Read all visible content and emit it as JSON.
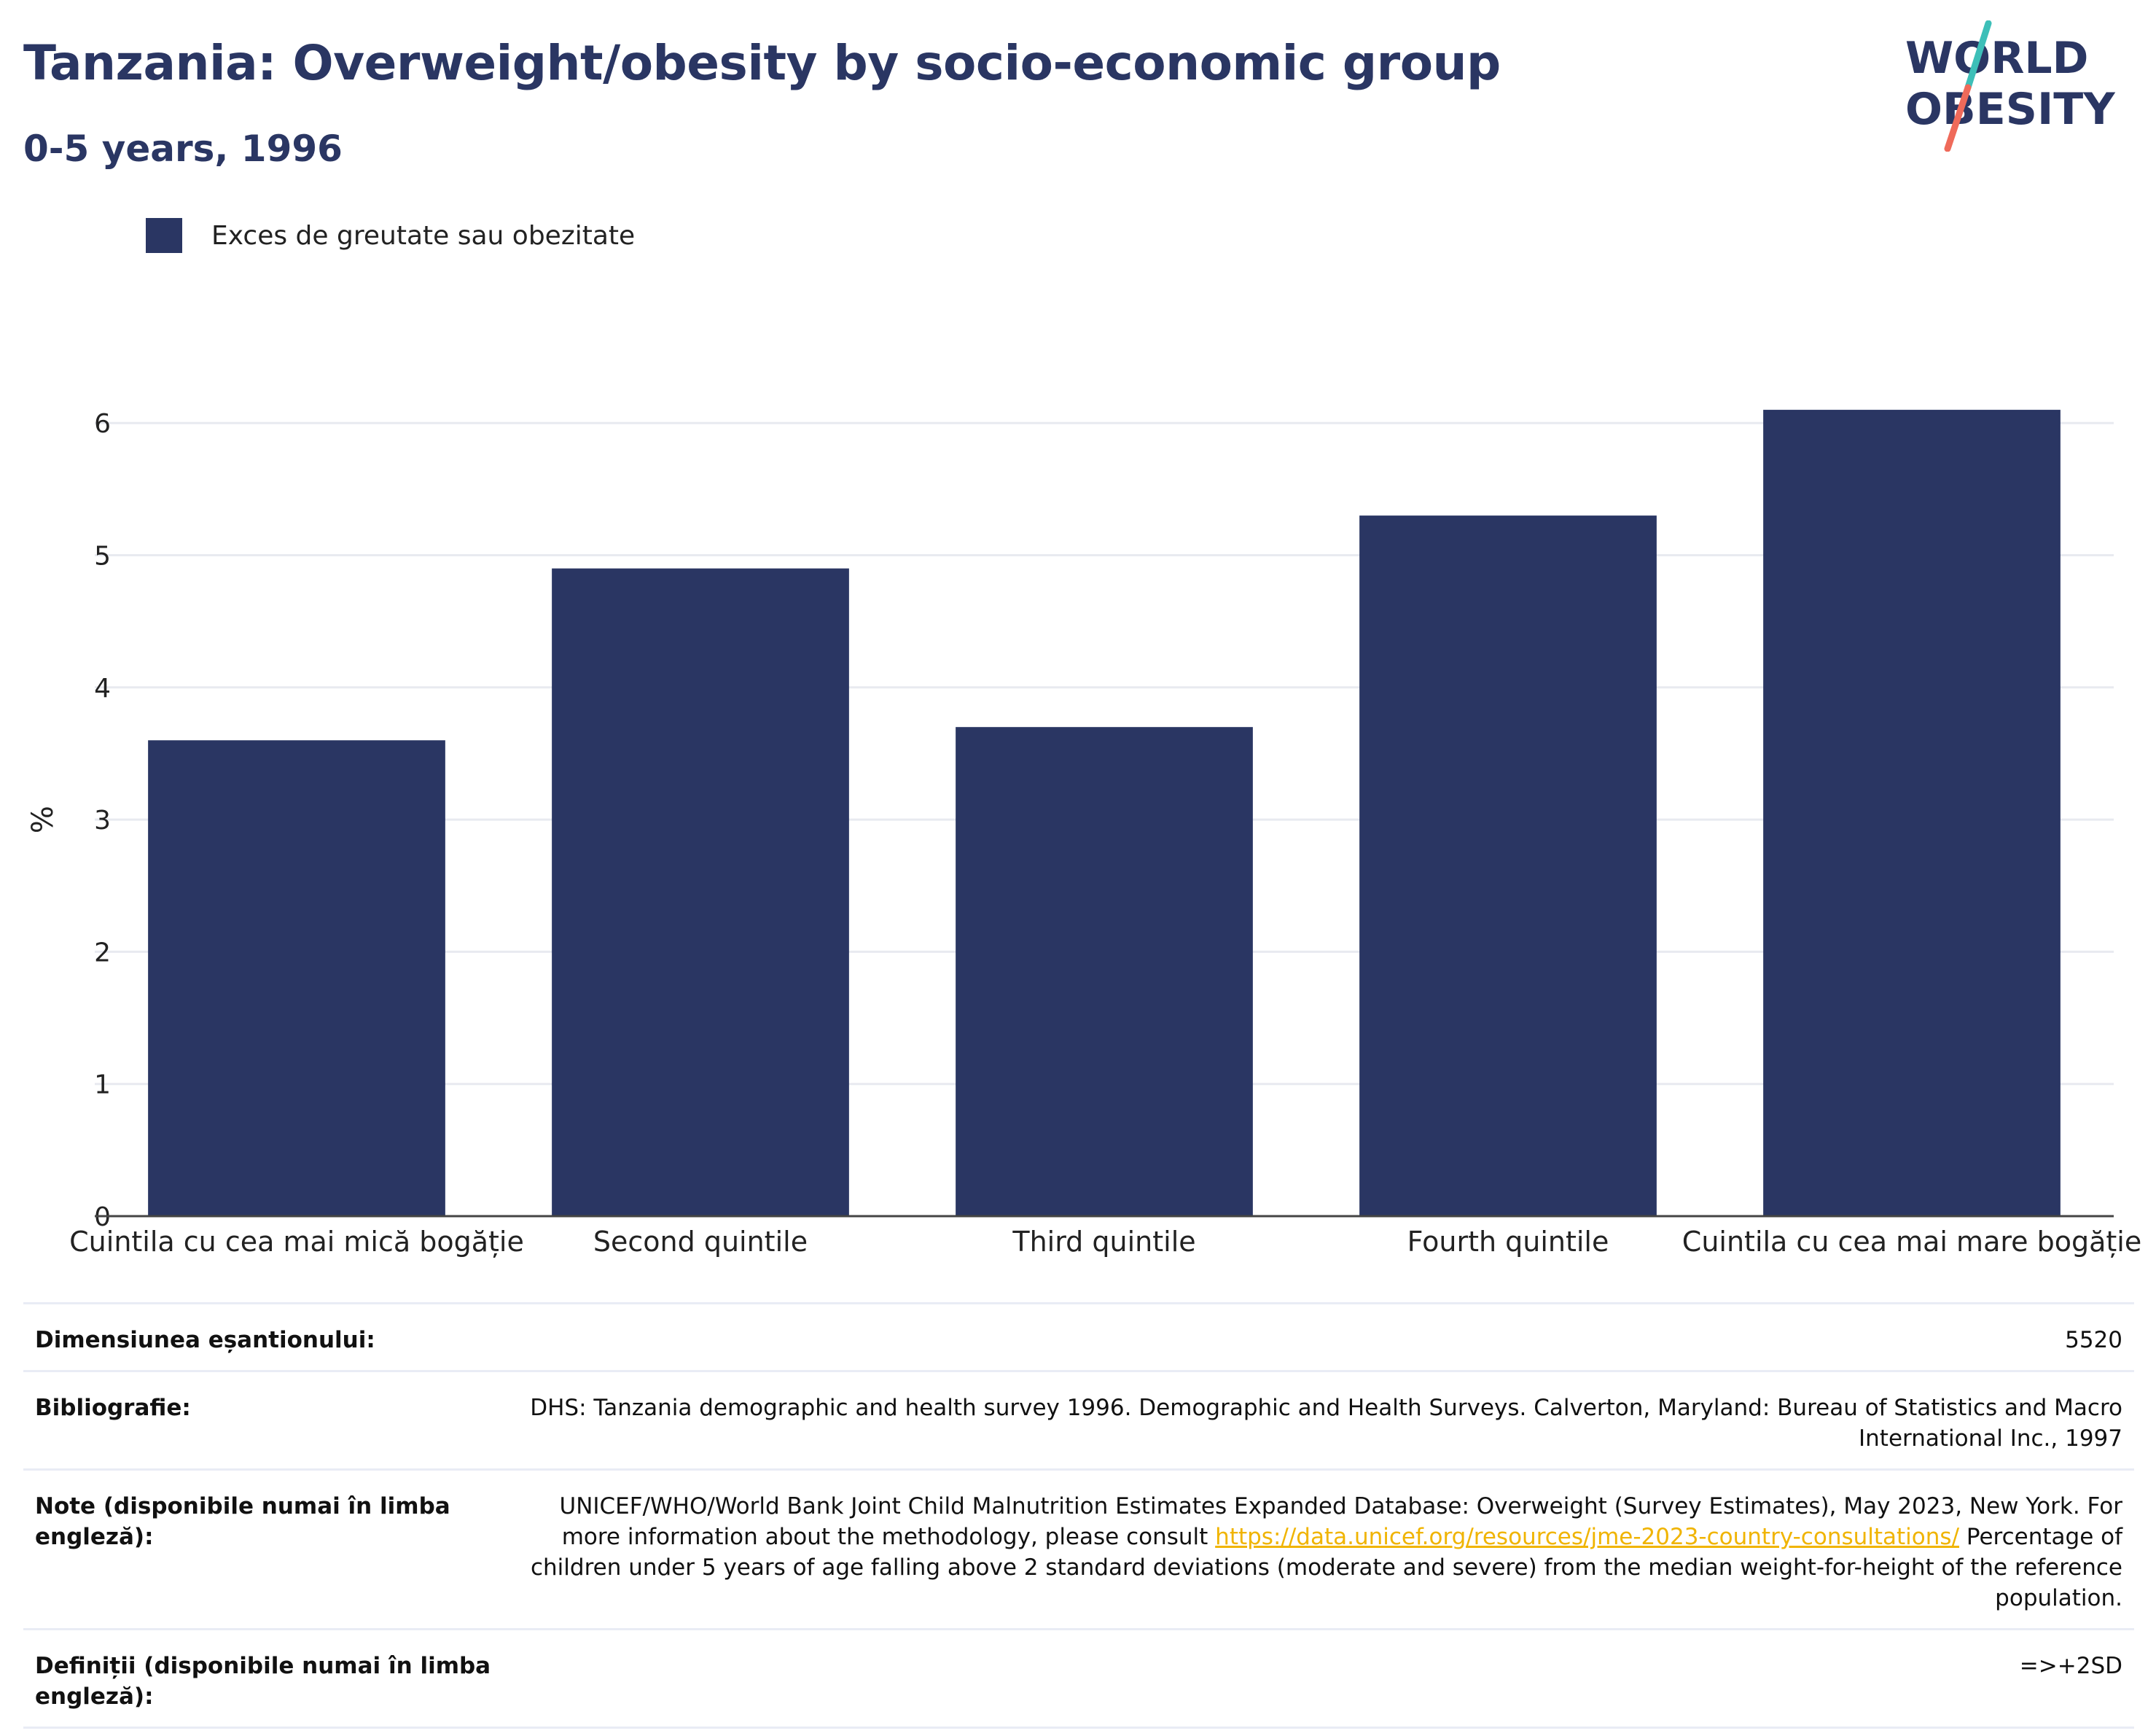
{
  "header": {
    "title": "Tanzania: Overweight/obesity by socio-economic group",
    "subtitle": "0-5 years, 1996"
  },
  "logo": {
    "line1": "WORLD",
    "line2": "OBESITY",
    "colors": {
      "text": "#2a3663",
      "slash_teal": "#3dbfb8",
      "slash_coral": "#ef6a5a"
    }
  },
  "colors": {
    "bar": "#2a3663",
    "grid": "#e8eaf0",
    "axis": "#444444",
    "link": "#f0b400"
  },
  "chart_data": {
    "type": "bar",
    "categories": [
      "Cuintila cu cea mai mică bogăție",
      "Second quintile",
      "Third quintile",
      "Fourth quintile",
      "Cuintila cu cea mai mare bogăție"
    ],
    "series": [
      {
        "name": "Exces de greutate sau obezitate",
        "values": [
          3.6,
          4.9,
          3.7,
          5.3,
          6.1
        ]
      }
    ],
    "xlabel": "",
    "ylabel": "%",
    "ylim": [
      0,
      6.5
    ],
    "yticks": [
      0,
      1,
      2,
      3,
      4,
      5,
      6
    ],
    "grid": true,
    "legend": "top-left"
  },
  "info": {
    "sample_size": {
      "label": "Dimensiunea eșantionului:",
      "value": "5520"
    },
    "bibliography": {
      "label": "Bibliografie:",
      "value": "DHS: Tanzania demographic and health survey 1996. Demographic and Health Surveys. Calverton, Maryland: Bureau of Statistics and Macro International Inc., 1997"
    },
    "notes": {
      "label": "Note (disponibile numai în limba engleză):",
      "text_before": "UNICEF/WHO/World Bank Joint Child Malnutrition Estimates Expanded Database: Overweight (Survey Estimates), May 2023, New York. For more information about the methodology, please consult ",
      "link": "https://data.unicef.org/resources/jme-2023-country-consultations/",
      "text_after": " Percentage of children under 5 years of age falling above 2 standard deviations (moderate and severe) from the median weight-for-height of the reference population."
    },
    "definitions": {
      "label": "Definiții (disponibile numai în limba engleză):",
      "value": "=>+2SD"
    }
  }
}
